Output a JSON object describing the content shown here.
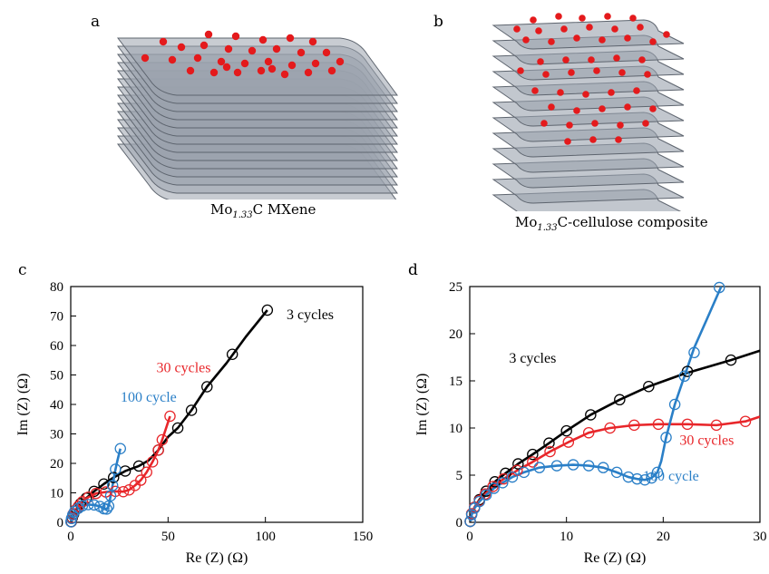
{
  "panels": {
    "a": {
      "letter": "a",
      "caption_prefix": "Mo",
      "caption_sub": "1.33",
      "caption_suffix": "C MXene"
    },
    "b": {
      "letter": "b",
      "caption_prefix": "Mo",
      "caption_sub": "1.33",
      "caption_suffix": "C-cellulose composite"
    },
    "c": {
      "letter": "c"
    },
    "d": {
      "letter": "d"
    }
  },
  "colors": {
    "sheet_fill": "#9aa2ad",
    "sheet_edge": "#5d646e",
    "particle": "#e41a1c",
    "black": "#000000",
    "red": "#e8262a",
    "blue": "#2a7fc7"
  },
  "chart_data": [
    {
      "id": "c",
      "type": "line",
      "xlabel": "Re (Z) (Ω)",
      "ylabel": "Im (Z) (Ω)",
      "xlim": [
        0,
        150
      ],
      "ylim": [
        0,
        80
      ],
      "xticks": [
        0,
        50,
        100,
        150
      ],
      "yticks": [
        0,
        10,
        20,
        30,
        40,
        50,
        60,
        70,
        80
      ],
      "grid": false,
      "series": [
        {
          "name": "3 cycles",
          "color": "#000000",
          "points": [
            [
              0.3,
              0.2
            ],
            [
              0.8,
              1.5
            ],
            [
              1.5,
              2.8
            ],
            [
              3,
              4.5
            ],
            [
              5,
              6.3
            ],
            [
              8,
              8.2
            ],
            [
              12,
              10.5
            ],
            [
              17,
              13
            ],
            [
              22,
              15.2
            ],
            [
              28,
              17.4
            ],
            [
              35,
              19.1
            ],
            [
              40,
              21
            ],
            [
              45,
              24.5
            ],
            [
              50,
              29
            ],
            [
              55,
              32
            ],
            [
              62,
              38
            ],
            [
              70,
              46
            ],
            [
              80,
              54
            ],
            [
              90,
              63
            ],
            [
              101,
              72
            ]
          ],
          "markers": [
            [
              0.3,
              0.2
            ],
            [
              0.8,
              1.5
            ],
            [
              1.5,
              2.8
            ],
            [
              3,
              4.5
            ],
            [
              5,
              6.3
            ],
            [
              8,
              8.2
            ],
            [
              12,
              10.5
            ],
            [
              17,
              13
            ],
            [
              22,
              15.2
            ],
            [
              28,
              17.4
            ],
            [
              35,
              19.1
            ],
            [
              45,
              24.5
            ],
            [
              55,
              32
            ],
            [
              62,
              38
            ],
            [
              70,
              46
            ],
            [
              83,
              57
            ],
            [
              101,
              72
            ]
          ]
        },
        {
          "name": "30 cycles",
          "color": "#e8262a",
          "points": [
            [
              0.2,
              0.2
            ],
            [
              0.6,
              1.5
            ],
            [
              1.2,
              2.8
            ],
            [
              2.5,
              4.2
            ],
            [
              4,
              5.5
            ],
            [
              6,
              7
            ],
            [
              9,
              8.5
            ],
            [
              13,
              9.8
            ],
            [
              18,
              10.3
            ],
            [
              23,
              10.5
            ],
            [
              27,
              10.4
            ],
            [
              30,
              11
            ],
            [
              33,
              12.5
            ],
            [
              36,
              14.3
            ],
            [
              39,
              17
            ],
            [
              42,
              20.5
            ],
            [
              45,
              24.5
            ],
            [
              47,
              28
            ],
            [
              49,
              32
            ],
            [
              51,
              36
            ]
          ],
          "markers": [
            [
              0.2,
              0.2
            ],
            [
              0.6,
              1.5
            ],
            [
              1.2,
              2.8
            ],
            [
              2.5,
              4.2
            ],
            [
              4,
              5.5
            ],
            [
              6,
              7
            ],
            [
              9,
              8.5
            ],
            [
              13,
              9.8
            ],
            [
              18,
              10.3
            ],
            [
              23,
              10.5
            ],
            [
              27,
              10.4
            ],
            [
              30,
              11
            ],
            [
              33,
              12.5
            ],
            [
              36,
              14.3
            ],
            [
              39,
              17
            ],
            [
              42,
              20.5
            ],
            [
              45,
              24.5
            ],
            [
              47,
              28
            ],
            [
              51,
              36
            ]
          ]
        },
        {
          "name": "100 cycle",
          "color": "#2a7fc7",
          "points": [
            [
              0.1,
              0.2
            ],
            [
              0.4,
              1.3
            ],
            [
              1,
              2.5
            ],
            [
              2,
              3.7
            ],
            [
              4,
              4.8
            ],
            [
              6,
              5.6
            ],
            [
              9,
              6
            ],
            [
              12,
              5.9
            ],
            [
              15,
              5.4
            ],
            [
              17,
              4.6
            ],
            [
              18.5,
              4.5
            ],
            [
              19.5,
              5.5
            ],
            [
              20.5,
              9
            ],
            [
              21.5,
              12.5
            ],
            [
              23,
              18
            ],
            [
              24,
              21
            ],
            [
              25.5,
              25
            ]
          ],
          "markers": [
            [
              0.1,
              0.2
            ],
            [
              0.4,
              1.3
            ],
            [
              1,
              2.5
            ],
            [
              2,
              3.7
            ],
            [
              4,
              4.8
            ],
            [
              6,
              5.6
            ],
            [
              9,
              6
            ],
            [
              12,
              5.9
            ],
            [
              15,
              5.4
            ],
            [
              17,
              4.6
            ],
            [
              18.5,
              4.5
            ],
            [
              19.5,
              5.5
            ],
            [
              20.5,
              9
            ],
            [
              21.5,
              12.5
            ],
            [
              23,
              18
            ],
            [
              25.5,
              25
            ]
          ]
        }
      ],
      "labels": [
        {
          "text": "3 cycles",
          "color": "#000000",
          "x": 123,
          "y": 69
        },
        {
          "text": "30 cycles",
          "color": "#e8262a",
          "x": 58,
          "y": 51
        },
        {
          "text": "100 cycle",
          "color": "#2a7fc7",
          "x": 40,
          "y": 41
        }
      ]
    },
    {
      "id": "d",
      "type": "line",
      "xlabel": "Re (Z) (Ω)",
      "ylabel": "Im (Z) (Ω)",
      "xlim": [
        0,
        30
      ],
      "ylim": [
        0,
        25
      ],
      "xticks": [
        0,
        10,
        20,
        30
      ],
      "yticks": [
        0,
        5,
        10,
        15,
        20,
        25
      ],
      "grid": false,
      "series": [
        {
          "name": "3 cycles",
          "color": "#000000",
          "points": [
            [
              0.05,
              0.1
            ],
            [
              0.2,
              0.9
            ],
            [
              0.5,
              1.6
            ],
            [
              1,
              2.4
            ],
            [
              1.7,
              3.3
            ],
            [
              2.6,
              4.3
            ],
            [
              3.7,
              5.2
            ],
            [
              5,
              6.2
            ],
            [
              6.5,
              7.2
            ],
            [
              8.2,
              8.4
            ],
            [
              10,
              9.7
            ],
            [
              12.5,
              11.4
            ],
            [
              15.5,
              13
            ],
            [
              18.5,
              14.4
            ],
            [
              22,
              15.7
            ],
            [
              25,
              16.6
            ],
            [
              27,
              17.2
            ],
            [
              30,
              18.2
            ]
          ],
          "markers": [
            [
              0.05,
              0.1
            ],
            [
              0.2,
              0.9
            ],
            [
              0.5,
              1.6
            ],
            [
              1,
              2.4
            ],
            [
              1.7,
              3.3
            ],
            [
              2.6,
              4.3
            ],
            [
              3.7,
              5.2
            ],
            [
              5,
              6.2
            ],
            [
              6.5,
              7.2
            ],
            [
              8.2,
              8.4
            ],
            [
              10,
              9.7
            ],
            [
              12.5,
              11.4
            ],
            [
              15.5,
              13
            ],
            [
              18.5,
              14.4
            ],
            [
              22.5,
              16
            ],
            [
              27,
              17.2
            ]
          ]
        },
        {
          "name": "30 cycles",
          "color": "#e8262a",
          "points": [
            [
              0.05,
              0.1
            ],
            [
              0.2,
              0.9
            ],
            [
              0.5,
              1.6
            ],
            [
              1,
              2.3
            ],
            [
              1.6,
              3
            ],
            [
              2.4,
              3.8
            ],
            [
              3.5,
              4.6
            ],
            [
              4.9,
              5.5
            ],
            [
              6.5,
              6.4
            ],
            [
              8.3,
              7.5
            ],
            [
              10.2,
              8.5
            ],
            [
              12.3,
              9.5
            ],
            [
              14.5,
              10
            ],
            [
              17,
              10.3
            ],
            [
              19.5,
              10.4
            ],
            [
              22.5,
              10.4
            ],
            [
              25.5,
              10.3
            ],
            [
              28.5,
              10.7
            ],
            [
              30,
              11.2
            ]
          ],
          "markers": [
            [
              0.05,
              0.1
            ],
            [
              0.2,
              0.9
            ],
            [
              0.5,
              1.6
            ],
            [
              1,
              2.3
            ],
            [
              1.6,
              3
            ],
            [
              2.4,
              3.8
            ],
            [
              3.5,
              4.6
            ],
            [
              4.9,
              5.5
            ],
            [
              6.5,
              6.4
            ],
            [
              8.3,
              7.5
            ],
            [
              10.2,
              8.5
            ],
            [
              12.3,
              9.5
            ],
            [
              14.5,
              10
            ],
            [
              17,
              10.3
            ],
            [
              19.5,
              10.4
            ],
            [
              22.5,
              10.4
            ],
            [
              25.5,
              10.3
            ],
            [
              28.5,
              10.7
            ]
          ]
        },
        {
          "name": "100 cycle",
          "color": "#2a7fc7",
          "points": [
            [
              0.05,
              0.1
            ],
            [
              0.2,
              0.8
            ],
            [
              0.5,
              1.5
            ],
            [
              1,
              2.2
            ],
            [
              1.7,
              2.9
            ],
            [
              2.5,
              3.6
            ],
            [
              3.4,
              4.2
            ],
            [
              4.4,
              4.8
            ],
            [
              5.6,
              5.3
            ],
            [
              7.2,
              5.8
            ],
            [
              9,
              6
            ],
            [
              10.7,
              6.1
            ],
            [
              12.3,
              6
            ],
            [
              13.8,
              5.8
            ],
            [
              15.2,
              5.3
            ],
            [
              16.4,
              4.8
            ],
            [
              17.3,
              4.6
            ],
            [
              18.1,
              4.5
            ],
            [
              18.8,
              4.7
            ],
            [
              19.4,
              5.3
            ],
            [
              19.8,
              6.5
            ],
            [
              20.3,
              9
            ],
            [
              21.2,
              12.5
            ],
            [
              22.2,
              15.5
            ],
            [
              23.2,
              18.5
            ],
            [
              24.5,
              21.5
            ],
            [
              26,
              25
            ]
          ],
          "markers": [
            [
              0.05,
              0.1
            ],
            [
              0.2,
              0.8
            ],
            [
              0.5,
              1.5
            ],
            [
              1,
              2.2
            ],
            [
              1.7,
              2.9
            ],
            [
              2.5,
              3.6
            ],
            [
              3.4,
              4.2
            ],
            [
              4.4,
              4.8
            ],
            [
              5.6,
              5.3
            ],
            [
              7.2,
              5.8
            ],
            [
              9,
              6
            ],
            [
              10.7,
              6.1
            ],
            [
              12.3,
              6
            ],
            [
              13.8,
              5.8
            ],
            [
              15.2,
              5.3
            ],
            [
              16.4,
              4.8
            ],
            [
              17.3,
              4.6
            ],
            [
              18.1,
              4.5
            ],
            [
              18.8,
              4.7
            ],
            [
              19.4,
              5.3
            ],
            [
              20.3,
              9
            ],
            [
              21.2,
              12.5
            ],
            [
              22.2,
              15.5
            ],
            [
              23.2,
              18
            ],
            [
              25.8,
              24.9
            ]
          ]
        }
      ],
      "labels": [
        {
          "text": "3 cycles",
          "color": "#000000",
          "x": 6.5,
          "y": 16.9
        },
        {
          "text": "30 cycles",
          "color": "#e8262a",
          "x": 24.5,
          "y": 8.2
        },
        {
          "text": "100 cycle",
          "color": "#2a7fc7",
          "x": 20.8,
          "y": 4.4
        }
      ]
    }
  ]
}
